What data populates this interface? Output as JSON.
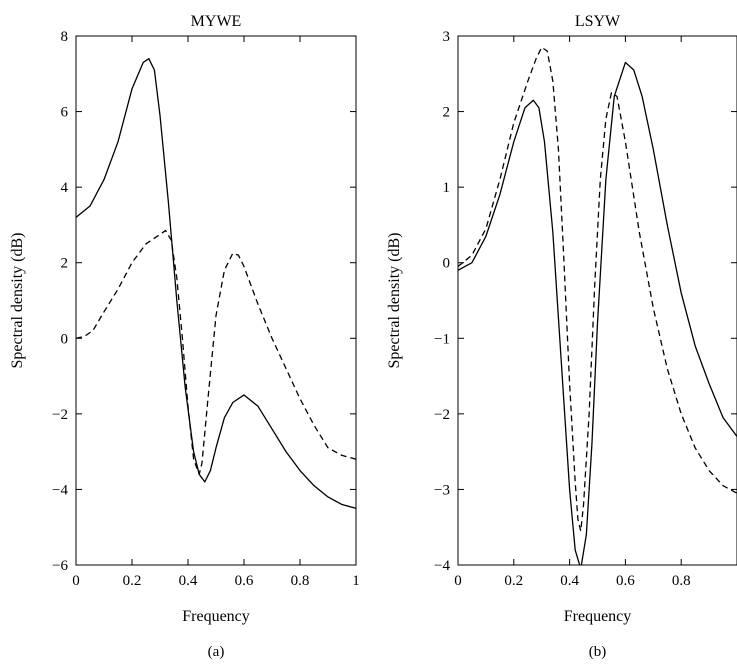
{
  "chart_data": [
    {
      "type": "line",
      "title": "MYWE",
      "xlabel": "Frequency",
      "ylabel": "Spectral density (dB)",
      "caption": "(a)",
      "xlim": [
        0,
        1
      ],
      "ylim": [
        -6,
        8
      ],
      "xticks": [
        0,
        0.2,
        0.4,
        0.6,
        0.8,
        1
      ],
      "xtick_labels": [
        "0",
        "0.2",
        "0.4",
        "0.6",
        "0.8",
        "1"
      ],
      "yticks": [
        -6,
        -4,
        -2,
        0,
        2,
        4,
        6,
        8
      ],
      "ytick_labels": [
        "−6",
        "−4",
        "−2",
        "0",
        "2",
        "4",
        "6",
        "8"
      ],
      "grid": false,
      "series": [
        {
          "style": "solid",
          "color": "#000000",
          "x": [
            0,
            0.05,
            0.1,
            0.15,
            0.2,
            0.24,
            0.26,
            0.28,
            0.3,
            0.33,
            0.36,
            0.39,
            0.42,
            0.44,
            0.46,
            0.48,
            0.5,
            0.53,
            0.56,
            0.6,
            0.65,
            0.7,
            0.75,
            0.8,
            0.85,
            0.9,
            0.95,
            1.0
          ],
          "y": [
            3.2,
            3.5,
            4.2,
            5.2,
            6.6,
            7.3,
            7.4,
            7.1,
            5.9,
            3.6,
            1.0,
            -1.3,
            -3.0,
            -3.6,
            -3.8,
            -3.5,
            -2.9,
            -2.1,
            -1.7,
            -1.5,
            -1.8,
            -2.4,
            -3.0,
            -3.5,
            -3.9,
            -4.2,
            -4.4,
            -4.5
          ]
        },
        {
          "style": "dashed",
          "color": "#000000",
          "x": [
            0,
            0.03,
            0.06,
            0.1,
            0.15,
            0.2,
            0.25,
            0.3,
            0.32,
            0.34,
            0.36,
            0.38,
            0.4,
            0.42,
            0.44,
            0.45,
            0.47,
            0.5,
            0.53,
            0.56,
            0.58,
            0.6,
            0.65,
            0.7,
            0.75,
            0.8,
            0.85,
            0.9,
            0.95,
            1.0
          ],
          "y": [
            0.0,
            0.05,
            0.2,
            0.7,
            1.3,
            2.0,
            2.5,
            2.75,
            2.85,
            2.6,
            1.6,
            0.0,
            -1.8,
            -3.2,
            -3.6,
            -3.3,
            -1.7,
            0.6,
            1.8,
            2.25,
            2.2,
            1.9,
            0.9,
            0.0,
            -0.8,
            -1.6,
            -2.3,
            -2.9,
            -3.1,
            -3.2
          ]
        }
      ]
    },
    {
      "type": "line",
      "title": "LSYW",
      "xlabel": "Frequency",
      "ylabel": "Spectral density (dB)",
      "caption": "(b)",
      "xlim": [
        0,
        1
      ],
      "ylim": [
        -4,
        3
      ],
      "xticks": [
        0,
        0.2,
        0.4,
        0.6,
        0.8
      ],
      "xtick_labels": [
        "0",
        "0.2",
        "0.4",
        "0.6",
        "0.8"
      ],
      "yticks": [
        -4,
        -3,
        -2,
        -1,
        0,
        1,
        2,
        3
      ],
      "ytick_labels": [
        "−4",
        "−3",
        "−2",
        "−1",
        "0",
        "1",
        "2",
        "3"
      ],
      "grid": false,
      "series": [
        {
          "style": "solid",
          "color": "#000000",
          "x": [
            0,
            0.05,
            0.1,
            0.15,
            0.2,
            0.24,
            0.27,
            0.29,
            0.31,
            0.34,
            0.37,
            0.4,
            0.42,
            0.44,
            0.46,
            0.48,
            0.5,
            0.53,
            0.56,
            0.6,
            0.63,
            0.66,
            0.7,
            0.75,
            0.8,
            0.85,
            0.9,
            0.95,
            1.0
          ],
          "y": [
            -0.1,
            0.0,
            0.35,
            0.9,
            1.6,
            2.05,
            2.15,
            2.05,
            1.6,
            0.4,
            -1.3,
            -3.0,
            -3.8,
            -4.05,
            -3.6,
            -2.4,
            -0.8,
            1.1,
            2.2,
            2.65,
            2.55,
            2.2,
            1.5,
            0.5,
            -0.4,
            -1.1,
            -1.6,
            -2.05,
            -2.3
          ]
        },
        {
          "style": "dashed",
          "color": "#000000",
          "x": [
            0,
            0.05,
            0.1,
            0.15,
            0.2,
            0.25,
            0.28,
            0.3,
            0.32,
            0.34,
            0.36,
            0.38,
            0.4,
            0.42,
            0.43,
            0.44,
            0.45,
            0.47,
            0.49,
            0.51,
            0.53,
            0.55,
            0.57,
            0.6,
            0.65,
            0.7,
            0.75,
            0.8,
            0.85,
            0.9,
            0.95,
            1.0
          ],
          "y": [
            -0.05,
            0.1,
            0.45,
            1.1,
            1.85,
            2.4,
            2.7,
            2.85,
            2.8,
            2.4,
            1.5,
            0.0,
            -1.6,
            -2.9,
            -3.4,
            -3.55,
            -3.2,
            -2.0,
            -0.3,
            1.1,
            1.9,
            2.25,
            2.2,
            1.6,
            0.4,
            -0.6,
            -1.4,
            -2.0,
            -2.45,
            -2.75,
            -2.95,
            -3.05
          ]
        }
      ]
    }
  ]
}
